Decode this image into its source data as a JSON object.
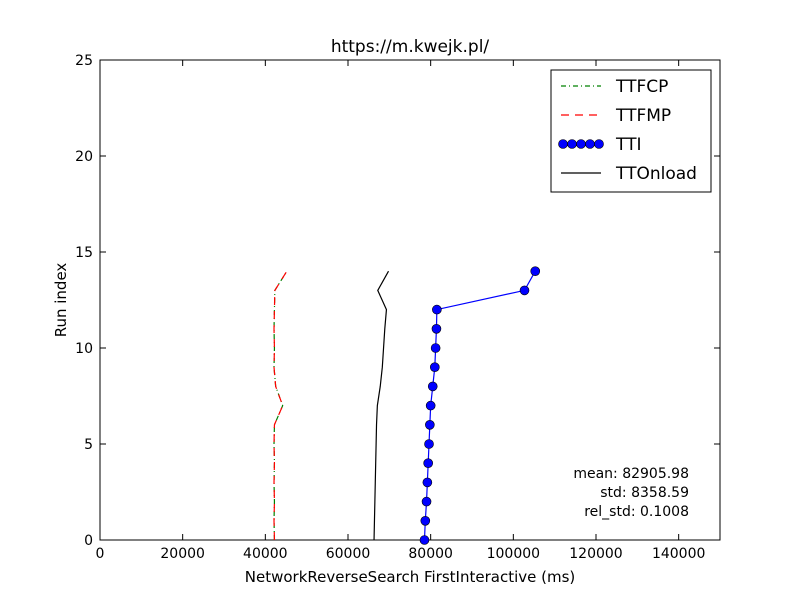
{
  "chart_data": {
    "type": "line",
    "title": "https://m.kwejk.pl/",
    "xlabel": "NetworkReverseSearch FirstInteractive (ms)",
    "ylabel": "Run index",
    "xlim": [
      0,
      150000
    ],
    "ylim": [
      0,
      25
    ],
    "x_ticks": [
      0,
      20000,
      40000,
      60000,
      80000,
      100000,
      120000,
      140000
    ],
    "x_tick_labels": [
      "0",
      "20000",
      "40000",
      "60000",
      "80000",
      "100000",
      "120000",
      "140000"
    ],
    "y_ticks": [
      0,
      5,
      10,
      15,
      20,
      25
    ],
    "y_tick_labels": [
      "0",
      "5",
      "10",
      "15",
      "20",
      "25"
    ],
    "grid": false,
    "legend_position": "top-right",
    "series": [
      {
        "name": "TTFCP",
        "style": "dashdot",
        "color": "#008000",
        "points": [
          [
            42200,
            0
          ],
          [
            42100,
            1
          ],
          [
            42200,
            2
          ],
          [
            42100,
            3
          ],
          [
            42200,
            4
          ],
          [
            42100,
            5
          ],
          [
            42200,
            6
          ],
          [
            44200,
            7
          ],
          [
            42500,
            8
          ],
          [
            42100,
            9
          ],
          [
            42200,
            10
          ],
          [
            42100,
            11
          ],
          [
            42200,
            12
          ],
          [
            42300,
            13
          ],
          [
            45200,
            14
          ]
        ]
      },
      {
        "name": "TTFMP",
        "style": "dashed",
        "color": "#ff0000",
        "points": [
          [
            42200,
            0
          ],
          [
            42100,
            1
          ],
          [
            42200,
            2
          ],
          [
            42100,
            3
          ],
          [
            42200,
            4
          ],
          [
            42100,
            5
          ],
          [
            42200,
            6
          ],
          [
            44200,
            7
          ],
          [
            42500,
            8
          ],
          [
            42100,
            9
          ],
          [
            42200,
            10
          ],
          [
            42100,
            11
          ],
          [
            42200,
            12
          ],
          [
            42300,
            13
          ],
          [
            45200,
            14
          ]
        ]
      },
      {
        "name": "TTI",
        "style": "solid-marker",
        "color": "#0000ff",
        "points": [
          [
            78500,
            0
          ],
          [
            78700,
            1
          ],
          [
            79000,
            2
          ],
          [
            79200,
            3
          ],
          [
            79400,
            4
          ],
          [
            79600,
            5
          ],
          [
            79800,
            6
          ],
          [
            80000,
            7
          ],
          [
            80500,
            8
          ],
          [
            81000,
            9
          ],
          [
            81200,
            10
          ],
          [
            81400,
            11
          ],
          [
            81500,
            12
          ],
          [
            102700,
            13
          ],
          [
            105300,
            14
          ]
        ]
      },
      {
        "name": "TTOnload",
        "style": "solid",
        "color": "#000000",
        "points": [
          [
            66300,
            0
          ],
          [
            66400,
            1
          ],
          [
            66500,
            2
          ],
          [
            66600,
            3
          ],
          [
            66700,
            4
          ],
          [
            66800,
            5
          ],
          [
            66900,
            6
          ],
          [
            67100,
            7
          ],
          [
            67800,
            8
          ],
          [
            68300,
            9
          ],
          [
            68600,
            10
          ],
          [
            68900,
            11
          ],
          [
            69300,
            12
          ],
          [
            67200,
            13
          ],
          [
            69800,
            14
          ]
        ]
      }
    ],
    "annotations": [
      "mean: 82905.98",
      "std: 8358.59",
      "rel_std: 0.1008"
    ]
  }
}
